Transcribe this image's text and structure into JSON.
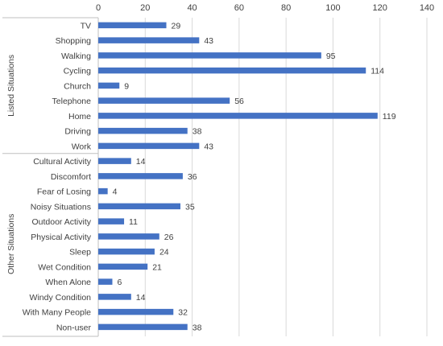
{
  "chart_data": {
    "type": "bar",
    "orientation": "horizontal",
    "axis_position": "top",
    "grid": true,
    "xlim": [
      0,
      140
    ],
    "xticks": [
      0,
      20,
      40,
      60,
      80,
      100,
      120,
      140
    ],
    "bar_color": "#4472c4",
    "gridline_color": "#d9d9d9",
    "text_color": "#404040",
    "groups": [
      {
        "name": "Listed Situations",
        "categories": [
          "TV",
          "Shopping",
          "Walking",
          "Cycling",
          "Church",
          "Telephone",
          "Home",
          "Driving",
          "Work"
        ],
        "values": [
          29,
          43,
          95,
          114,
          9,
          56,
          119,
          38,
          43
        ]
      },
      {
        "name": "Other Situations",
        "categories": [
          "Cultural Activity",
          "Discomfort",
          "Fear of Losing",
          "Noisy Situations",
          "Outdoor Activity",
          "Physical Activity",
          "Sleep",
          "Wet Condition",
          "When Alone",
          "Windy Condition",
          "With Many People",
          "Non-user"
        ],
        "values": [
          14,
          36,
          4,
          35,
          11,
          26,
          24,
          21,
          6,
          14,
          32,
          38
        ]
      }
    ]
  }
}
